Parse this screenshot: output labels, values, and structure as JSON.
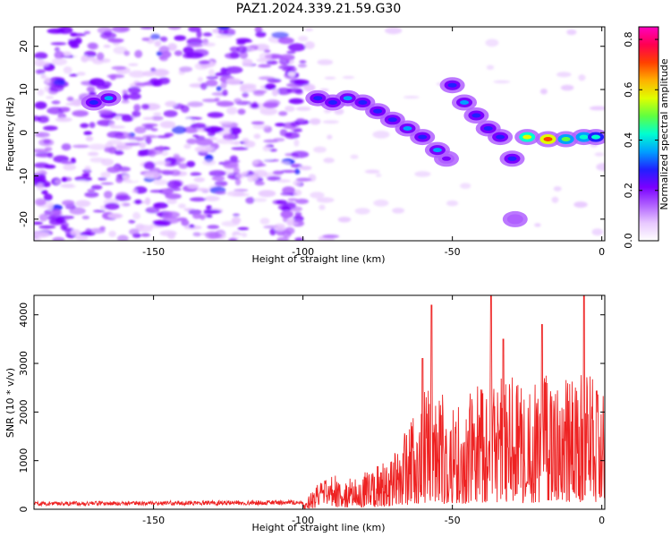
{
  "title": "PAZ1.2024.339.21.59.G30",
  "chart_data": [
    {
      "type": "heatmap",
      "xlabel": "Height of straight line (km)",
      "ylabel": "Frequency (Hz)",
      "xlim": [
        -190,
        1
      ],
      "ylim": [
        -25,
        24.5
      ],
      "xticks": [
        -150,
        -100,
        -50,
        0
      ],
      "yticks": [
        -20,
        -10,
        0,
        10,
        20
      ],
      "colorbar": {
        "label": "Normalized spectral amplitude",
        "range": [
          0,
          0.85
        ],
        "ticks": [
          "0.0",
          "0.2",
          "0.4",
          "0.6",
          "0.8"
        ],
        "tick_values": [
          0,
          0.2,
          0.4,
          0.6,
          0.8
        ],
        "colors": [
          "#ffffff",
          "#e8c8ff",
          "#b060ff",
          "#7a00ff",
          "#2020ff",
          "#00a0ff",
          "#00ffd0",
          "#60ff40",
          "#e0ff00",
          "#ffb000",
          "#ff4000",
          "#ff0050",
          "#ff00c0"
        ]
      },
      "ridge": [
        {
          "x": -170,
          "y": 7,
          "a": 0.3
        },
        {
          "x": -165,
          "y": 8,
          "a": 0.32
        },
        {
          "x": -95,
          "y": 8,
          "a": 0.28
        },
        {
          "x": -90,
          "y": 7,
          "a": 0.3
        },
        {
          "x": -85,
          "y": 8,
          "a": 0.32
        },
        {
          "x": -80,
          "y": 7,
          "a": 0.3
        },
        {
          "x": -75,
          "y": 5,
          "a": 0.28
        },
        {
          "x": -70,
          "y": 3,
          "a": 0.3
        },
        {
          "x": -65,
          "y": 1,
          "a": 0.33
        },
        {
          "x": -60,
          "y": -1,
          "a": 0.3
        },
        {
          "x": -55,
          "y": -4,
          "a": 0.32
        },
        {
          "x": -52,
          "y": -6,
          "a": 0.2
        },
        {
          "x": -50,
          "y": 11,
          "a": 0.25
        },
        {
          "x": -46,
          "y": 7,
          "a": 0.32
        },
        {
          "x": -42,
          "y": 4,
          "a": 0.28
        },
        {
          "x": -38,
          "y": 1,
          "a": 0.3
        },
        {
          "x": -34,
          "y": -1,
          "a": 0.28
        },
        {
          "x": -30,
          "y": -6,
          "a": 0.3
        },
        {
          "x": -29,
          "y": -20,
          "a": 0.15
        },
        {
          "x": -25,
          "y": -1,
          "a": 0.55
        },
        {
          "x": -18,
          "y": -1.5,
          "a": 0.72
        },
        {
          "x": -12,
          "y": -1.5,
          "a": 0.5
        },
        {
          "x": -6,
          "y": -1,
          "a": 0.45
        },
        {
          "x": -2,
          "y": -1,
          "a": 0.4
        }
      ]
    },
    {
      "type": "line",
      "xlabel": "Height of straight line (km)",
      "ylabel": "SNR (10 * v/v)",
      "xlim": [
        -190,
        1
      ],
      "ylim": [
        0,
        4400
      ],
      "xticks": [
        -150,
        -100,
        -50,
        0
      ],
      "yticks": [
        0,
        1000,
        2000,
        3000,
        4000
      ],
      "grid": false,
      "series": [
        {
          "color": "#ee2222",
          "envelope": [
            {
              "x": -190,
              "y": 150
            },
            {
              "x": -100,
              "y": 180
            },
            {
              "x": -95,
              "y": 500
            },
            {
              "x": -90,
              "y": 700
            },
            {
              "x": -80,
              "y": 700
            },
            {
              "x": -70,
              "y": 1000
            },
            {
              "x": -65,
              "y": 1700
            },
            {
              "x": -60,
              "y": 2300
            },
            {
              "x": -55,
              "y": 2400
            },
            {
              "x": -50,
              "y": 2000
            },
            {
              "x": -45,
              "y": 2200
            },
            {
              "x": -40,
              "y": 2600
            },
            {
              "x": -35,
              "y": 2700
            },
            {
              "x": -30,
              "y": 2600
            },
            {
              "x": -25,
              "y": 2500
            },
            {
              "x": -20,
              "y": 2700
            },
            {
              "x": -15,
              "y": 2500
            },
            {
              "x": -10,
              "y": 2600
            },
            {
              "x": -5,
              "y": 2700
            },
            {
              "x": 1,
              "y": 2400
            }
          ],
          "peaks": [
            {
              "x": -57,
              "y": 4200
            },
            {
              "x": -37,
              "y": 4400
            },
            {
              "x": -33,
              "y": 3500
            },
            {
              "x": -20,
              "y": 3800
            },
            {
              "x": -6,
              "y": 4400
            },
            {
              "x": -60,
              "y": 3100
            }
          ]
        }
      ]
    }
  ]
}
